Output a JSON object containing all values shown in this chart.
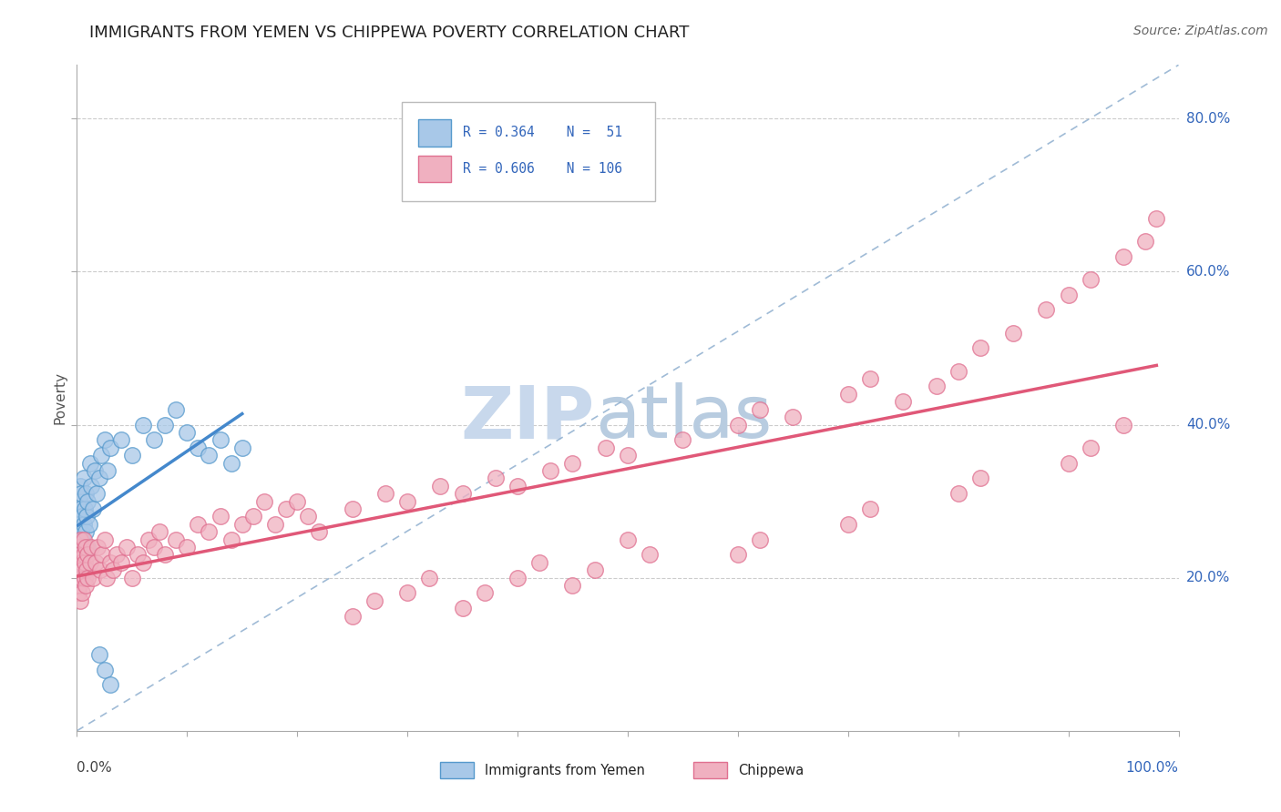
{
  "title": "IMMIGRANTS FROM YEMEN VS CHIPPEWA POVERTY CORRELATION CHART",
  "source": "Source: ZipAtlas.com",
  "ylabel": "Poverty",
  "color_blue_face": "#a8c8e8",
  "color_blue_edge": "#5599cc",
  "color_blue_line": "#4488cc",
  "color_pink_face": "#f0b0c0",
  "color_pink_edge": "#e07090",
  "color_pink_line": "#e05878",
  "color_ref_line": "#88aacc",
  "color_legend_text": "#3366bb",
  "color_grid": "#cccccc",
  "watermark_zip_color": "#c8d8ec",
  "watermark_atlas_color": "#b8cce0",
  "legend_r1": "R = 0.364",
  "legend_n1": "51",
  "legend_r2": "R = 0.606",
  "legend_n2": "106",
  "ytick_vals": [
    0.2,
    0.4,
    0.6,
    0.8
  ],
  "ytick_labels": [
    "20.0%",
    "40.0%",
    "60.0%",
    "80.0%"
  ],
  "xlim": [
    0.0,
    1.0
  ],
  "ylim": [
    0.0,
    0.87
  ],
  "blue_x": [
    0.001,
    0.001,
    0.001,
    0.001,
    0.002,
    0.002,
    0.002,
    0.002,
    0.003,
    0.003,
    0.003,
    0.004,
    0.004,
    0.005,
    0.005,
    0.005,
    0.006,
    0.006,
    0.007,
    0.007,
    0.008,
    0.008,
    0.009,
    0.01,
    0.01,
    0.011,
    0.012,
    0.013,
    0.015,
    0.016,
    0.018,
    0.02,
    0.022,
    0.025,
    0.028,
    0.03,
    0.04,
    0.05,
    0.06,
    0.07,
    0.08,
    0.09,
    0.1,
    0.11,
    0.12,
    0.13,
    0.14,
    0.15,
    0.02,
    0.025,
    0.03
  ],
  "blue_y": [
    0.28,
    0.26,
    0.24,
    0.22,
    0.3,
    0.27,
    0.25,
    0.23,
    0.32,
    0.29,
    0.21,
    0.31,
    0.26,
    0.28,
    0.25,
    0.2,
    0.27,
    0.33,
    0.29,
    0.24,
    0.31,
    0.26,
    0.28,
    0.3,
    0.24,
    0.27,
    0.35,
    0.32,
    0.29,
    0.34,
    0.31,
    0.33,
    0.36,
    0.38,
    0.34,
    0.37,
    0.38,
    0.36,
    0.4,
    0.38,
    0.4,
    0.42,
    0.39,
    0.37,
    0.36,
    0.38,
    0.35,
    0.37,
    0.1,
    0.08,
    0.06
  ],
  "pink_x": [
    0.001,
    0.001,
    0.001,
    0.002,
    0.002,
    0.002,
    0.003,
    0.003,
    0.003,
    0.004,
    0.004,
    0.005,
    0.005,
    0.006,
    0.006,
    0.007,
    0.007,
    0.008,
    0.008,
    0.009,
    0.01,
    0.01,
    0.012,
    0.013,
    0.015,
    0.017,
    0.019,
    0.021,
    0.023,
    0.025,
    0.027,
    0.03,
    0.033,
    0.036,
    0.04,
    0.045,
    0.05,
    0.055,
    0.06,
    0.065,
    0.07,
    0.075,
    0.08,
    0.09,
    0.1,
    0.11,
    0.12,
    0.13,
    0.14,
    0.15,
    0.16,
    0.17,
    0.18,
    0.19,
    0.2,
    0.21,
    0.22,
    0.25,
    0.28,
    0.3,
    0.33,
    0.35,
    0.38,
    0.4,
    0.43,
    0.45,
    0.48,
    0.5,
    0.55,
    0.6,
    0.62,
    0.65,
    0.7,
    0.72,
    0.75,
    0.78,
    0.8,
    0.82,
    0.85,
    0.88,
    0.9,
    0.92,
    0.95,
    0.97,
    0.98,
    0.5,
    0.52,
    0.4,
    0.42,
    0.3,
    0.32,
    0.25,
    0.27,
    0.35,
    0.37,
    0.45,
    0.47,
    0.6,
    0.62,
    0.7,
    0.72,
    0.8,
    0.82,
    0.9,
    0.92,
    0.95
  ],
  "pink_y": [
    0.22,
    0.2,
    0.18,
    0.24,
    0.21,
    0.19,
    0.23,
    0.25,
    0.17,
    0.22,
    0.2,
    0.21,
    0.18,
    0.23,
    0.25,
    0.2,
    0.22,
    0.24,
    0.19,
    0.21,
    0.23,
    0.2,
    0.22,
    0.24,
    0.2,
    0.22,
    0.24,
    0.21,
    0.23,
    0.25,
    0.2,
    0.22,
    0.21,
    0.23,
    0.22,
    0.24,
    0.2,
    0.23,
    0.22,
    0.25,
    0.24,
    0.26,
    0.23,
    0.25,
    0.24,
    0.27,
    0.26,
    0.28,
    0.25,
    0.27,
    0.28,
    0.3,
    0.27,
    0.29,
    0.3,
    0.28,
    0.26,
    0.29,
    0.31,
    0.3,
    0.32,
    0.31,
    0.33,
    0.32,
    0.34,
    0.35,
    0.37,
    0.36,
    0.38,
    0.4,
    0.42,
    0.41,
    0.44,
    0.46,
    0.43,
    0.45,
    0.47,
    0.5,
    0.52,
    0.55,
    0.57,
    0.59,
    0.62,
    0.64,
    0.67,
    0.25,
    0.23,
    0.2,
    0.22,
    0.18,
    0.2,
    0.15,
    0.17,
    0.16,
    0.18,
    0.19,
    0.21,
    0.23,
    0.25,
    0.27,
    0.29,
    0.31,
    0.33,
    0.35,
    0.37,
    0.4
  ]
}
